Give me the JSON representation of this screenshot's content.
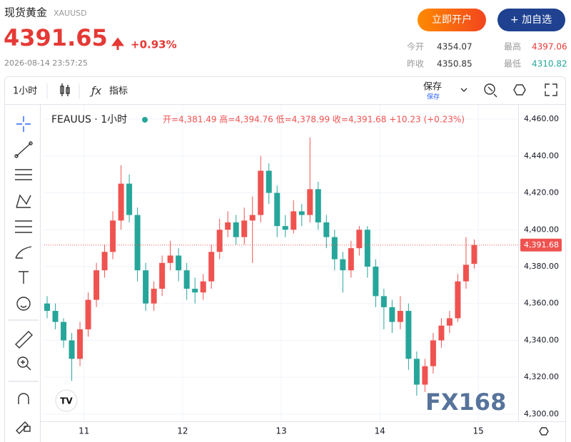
{
  "header": {
    "title": "现货黄金",
    "symbol": "XAUUSD",
    "price": "4391.65",
    "change": "+0.93%",
    "timestamp": "2026-08-14 23:57:25",
    "buttons": [
      "立即开户",
      "+ 加自选"
    ],
    "stats": [
      {
        "label": "今开",
        "value": "4354.07"
      },
      {
        "label": "最高",
        "value": "4397.06"
      },
      {
        "label": "昨收",
        "value": "4350.85"
      },
      {
        "label": "最低",
        "value": "4310.82"
      }
    ]
  },
  "toolbar": {
    "interval": "1小时",
    "indicators": "指标",
    "save": "保存",
    "save_sub": "保存"
  },
  "chart_data": {
    "type": "candlestick",
    "legend_title": "FEAUUS · 1小时",
    "ohlc_text": "开=4,381.49 高=4,394.76 低=4,378.99 收=4,391.68 +10.23 (+0.23%)",
    "watermark": "FX168",
    "up_color": "#ef5350",
    "down_color": "#26a69a",
    "x": [
      -9,
      -7,
      -5,
      -3,
      -1,
      1,
      3,
      5,
      7,
      9,
      11,
      13,
      15,
      17,
      19,
      21,
      23,
      25,
      27,
      29,
      31,
      33,
      35,
      37,
      39,
      41,
      43,
      45,
      47,
      49,
      51,
      53,
      55,
      57,
      59,
      61,
      63,
      65,
      67,
      69,
      71,
      73,
      75,
      77,
      79,
      81,
      83,
      85,
      87,
      89,
      91,
      93,
      95
    ],
    "open": [
      4360,
      4356,
      4350,
      4340,
      4330,
      4346,
      4362,
      4378,
      4388,
      4405,
      4425,
      4408,
      4378,
      4360,
      4368,
      4382,
      4386,
      4378,
      4368,
      4366,
      4372,
      4388,
      4400,
      4404,
      4396,
      4405,
      4408,
      4432,
      4420,
      4402,
      4400,
      4410,
      4408,
      4422,
      4404,
      4396,
      4384,
      4378,
      4390,
      4400,
      4380,
      4364,
      4358,
      4350,
      4356,
      4330,
      4316,
      4326,
      4340,
      4348,
      4352,
      4372,
      4381.49
    ],
    "high": [
      4364,
      4360,
      4352,
      4344,
      4350,
      4366,
      4382,
      4392,
      4410,
      4435,
      4430,
      4412,
      4382,
      4372,
      4386,
      4394,
      4390,
      4382,
      4374,
      4376,
      4392,
      4406,
      4410,
      4408,
      4412,
      4418,
      4440,
      4436,
      4424,
      4408,
      4416,
      4414,
      4450,
      4426,
      4408,
      4400,
      4388,
      4394,
      4402,
      4402,
      4384,
      4368,
      4362,
      4364,
      4360,
      4334,
      4330,
      4344,
      4352,
      4356,
      4376,
      4396,
      4394.76
    ],
    "low": [
      4352,
      4346,
      4336,
      4318,
      4326,
      4342,
      4358,
      4374,
      4384,
      4400,
      4404,
      4372,
      4356,
      4356,
      4364,
      4378,
      4372,
      4362,
      4360,
      4362,
      4368,
      4384,
      4396,
      4392,
      4392,
      4382,
      4404,
      4414,
      4396,
      4396,
      4398,
      4402,
      4404,
      4400,
      4390,
      4378,
      4366,
      4374,
      4386,
      4374,
      4358,
      4346,
      4344,
      4346,
      4324,
      4310,
      4312,
      4322,
      4336,
      4344,
      4350,
      4368,
      4378.99
    ],
    "close": [
      4356,
      4350,
      4340,
      4330,
      4346,
      4362,
      4378,
      4388,
      4405,
      4425,
      4408,
      4378,
      4360,
      4368,
      4382,
      4386,
      4378,
      4368,
      4366,
      4372,
      4388,
      4400,
      4404,
      4396,
      4405,
      4408,
      4432,
      4420,
      4402,
      4400,
      4410,
      4408,
      4422,
      4404,
      4396,
      4384,
      4378,
      4390,
      4400,
      4380,
      4364,
      4358,
      4350,
      4356,
      4330,
      4316,
      4326,
      4340,
      4348,
      4352,
      4372,
      4381,
      4391.68
    ],
    "xlim": [
      -9.7,
      105.7
    ],
    "xticks": [
      {
        "value": 0,
        "label": "11"
      },
      {
        "value": 24,
        "label": "12"
      },
      {
        "value": 48,
        "label": "13"
      },
      {
        "value": 72,
        "label": "14"
      },
      {
        "value": 96,
        "label": "15"
      }
    ],
    "ylim": [
      4296.1,
      4466.6
    ],
    "yticks": [
      {
        "value": 4300,
        "label": "4,300.00"
      },
      {
        "value": 4320,
        "label": "4,320.00"
      },
      {
        "value": 4340,
        "label": "4,340.00"
      },
      {
        "value": 4360,
        "label": "4,360.00"
      },
      {
        "value": 4380,
        "label": "4,380.00"
      },
      {
        "value": 4400,
        "label": "4,400.00"
      },
      {
        "value": 4420,
        "label": "4,420.00"
      },
      {
        "value": 4440,
        "label": "4,440.00"
      },
      {
        "value": 4460,
        "label": "4,460.00"
      }
    ],
    "price_line": {
      "value": 4391.68,
      "label": "4,391.68"
    }
  }
}
